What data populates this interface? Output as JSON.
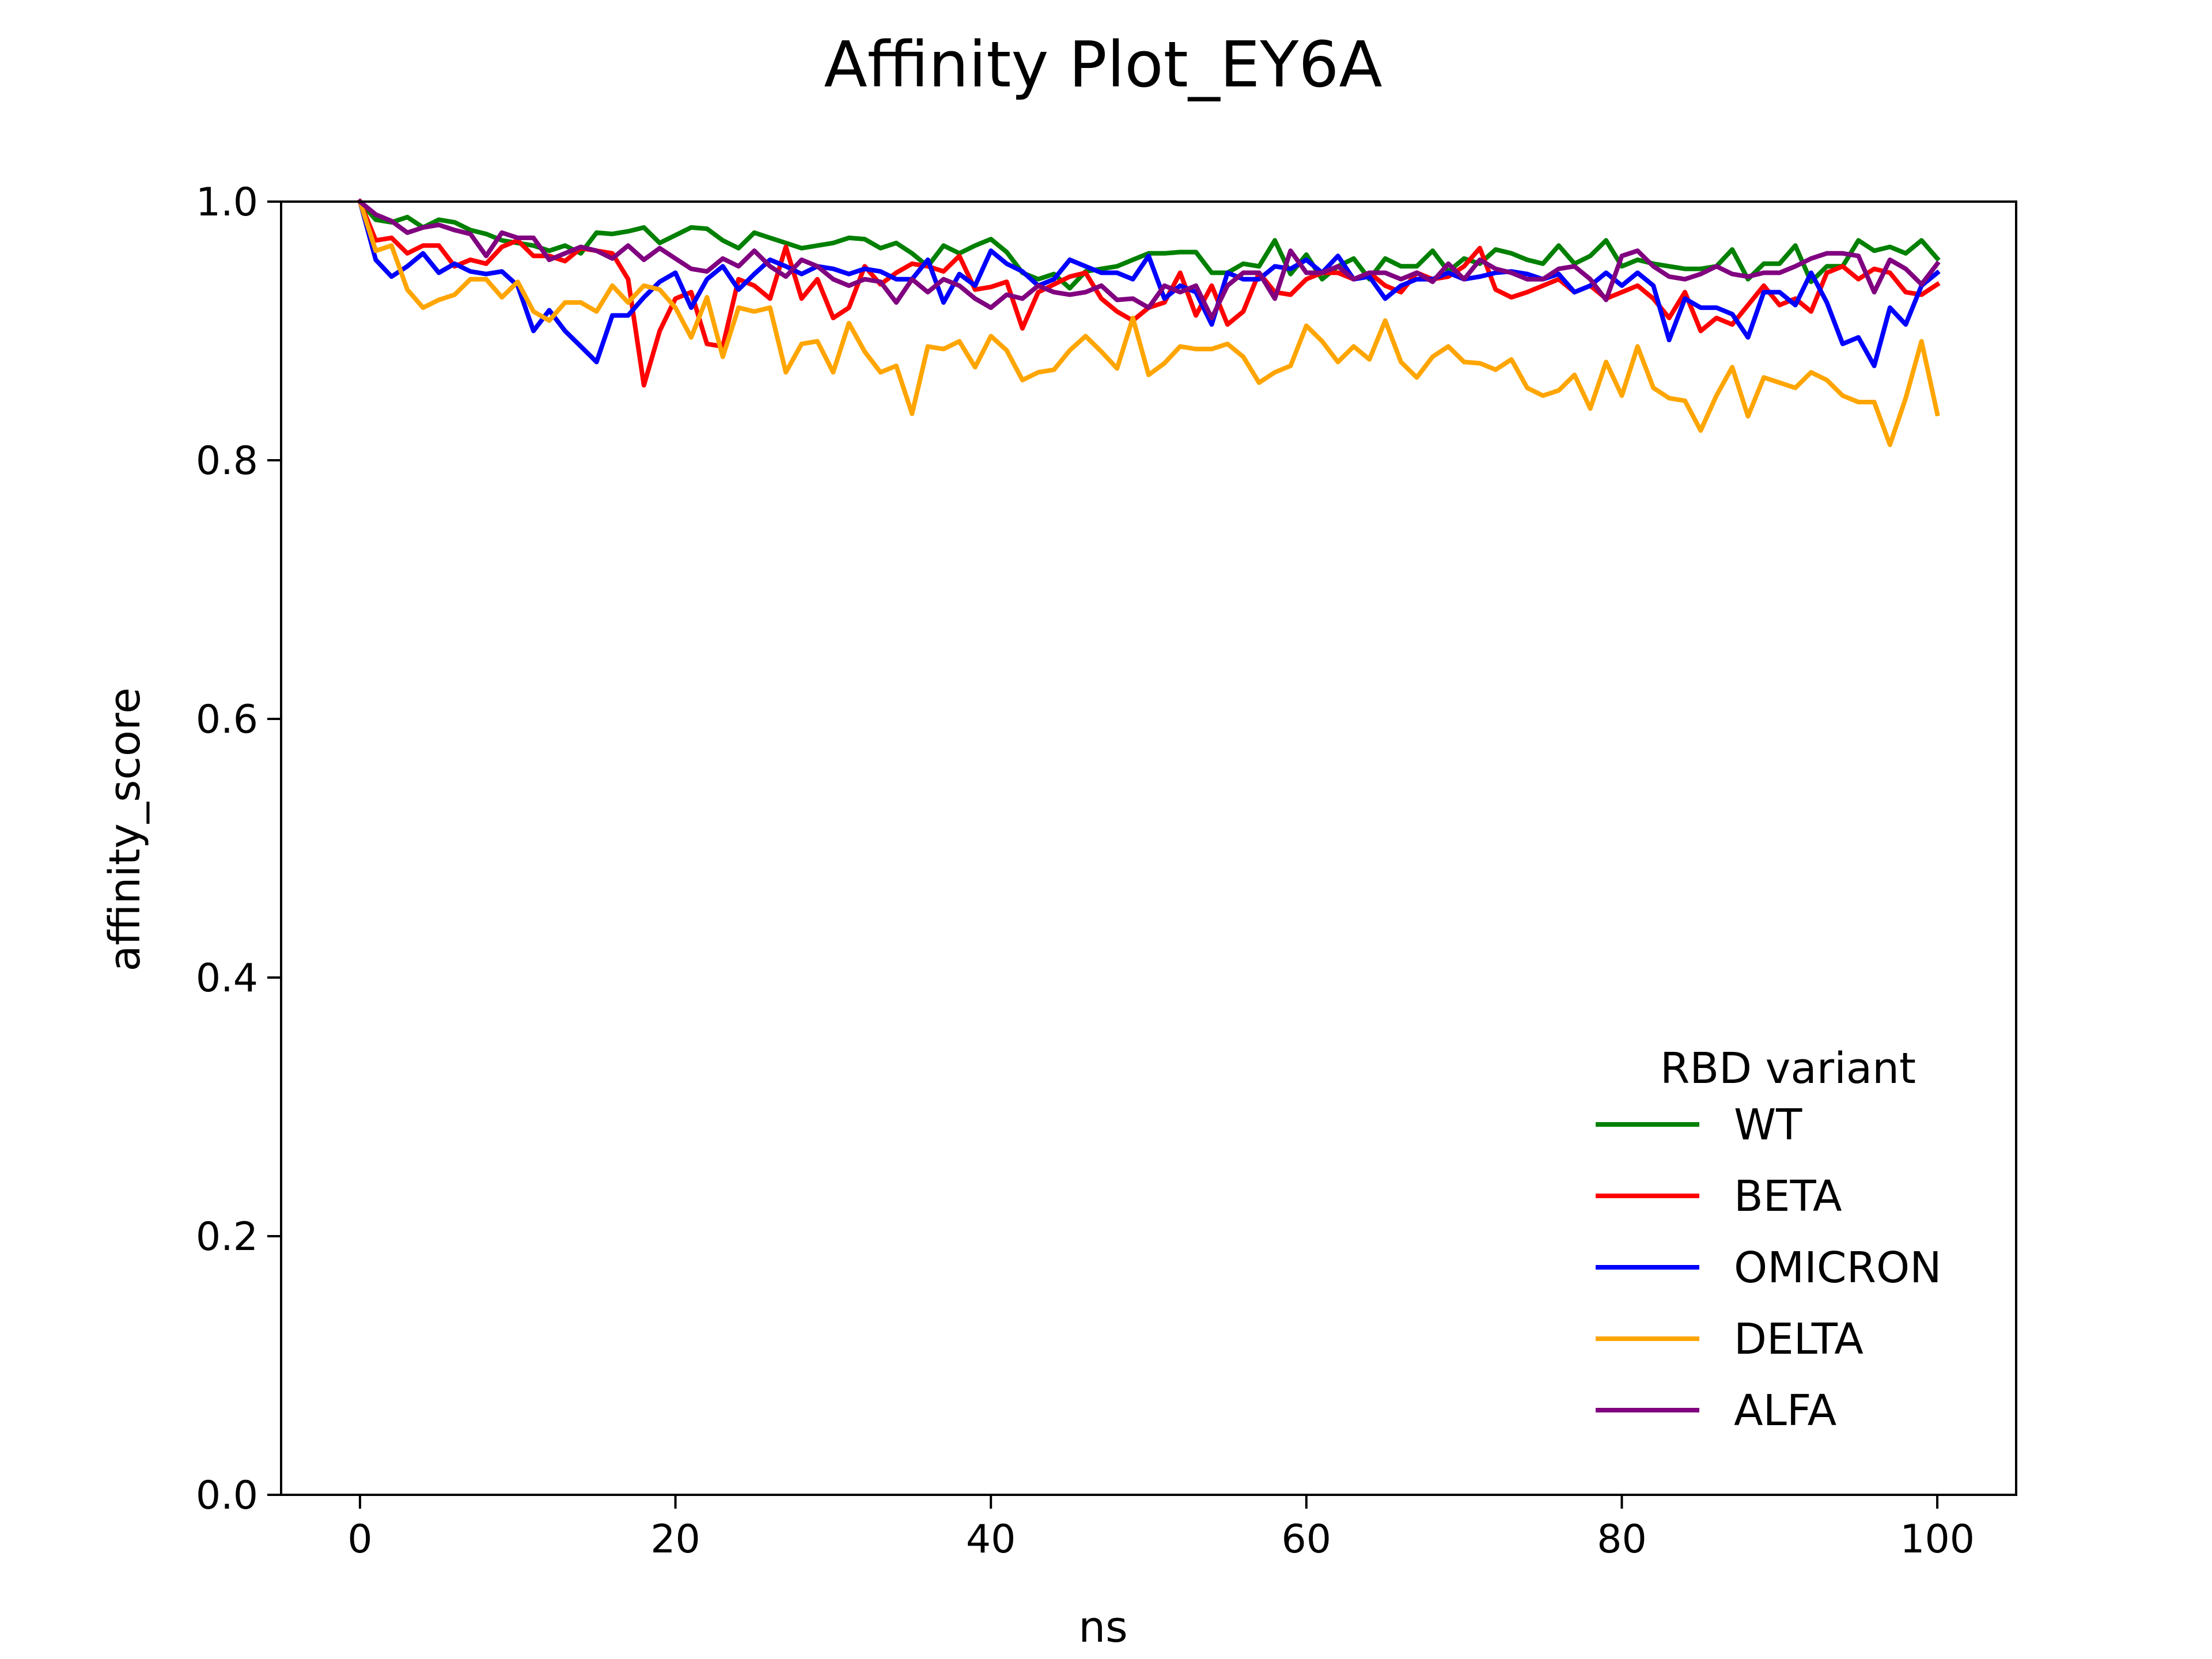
{
  "chart_data": {
    "type": "line",
    "title": "Affinity Plot_EY6A",
    "xlabel": "ns",
    "ylabel": "affinity_score",
    "xlim": [
      -5,
      105
    ],
    "ylim": [
      0.0,
      1.0
    ],
    "xticks": [
      0,
      20,
      40,
      60,
      80,
      100
    ],
    "xtick_labels": [
      "0",
      "20",
      "40",
      "60",
      "80",
      "100"
    ],
    "yticks": [
      0.0,
      0.2,
      0.4,
      0.6,
      0.8,
      1.0
    ],
    "ytick_labels": [
      "0.0",
      "0.2",
      "0.4",
      "0.6",
      "0.8",
      "1.0"
    ],
    "grid": false,
    "legend": {
      "title": "RBD variant",
      "placement": "lower-right"
    },
    "x": [
      0,
      1,
      2,
      3,
      4,
      5,
      6,
      7,
      8,
      9,
      10,
      11,
      12,
      13,
      14,
      15,
      16,
      17,
      18,
      19,
      20,
      21,
      22,
      23,
      24,
      25,
      26,
      27,
      28,
      29,
      30,
      31,
      32,
      33,
      34,
      35,
      36,
      37,
      38,
      39,
      40,
      41,
      42,
      43,
      44,
      45,
      46,
      47,
      48,
      49,
      50,
      51,
      52,
      53,
      54,
      55,
      56,
      57,
      58,
      59,
      60,
      61,
      62,
      63,
      64,
      65,
      66,
      67,
      68,
      69,
      70,
      71,
      72,
      73,
      74,
      75,
      76,
      77,
      78,
      79,
      80,
      81,
      82,
      83,
      84,
      85,
      86,
      87,
      88,
      89,
      90,
      91,
      92,
      93,
      94,
      95,
      96,
      97,
      98,
      99,
      100
    ],
    "series": [
      {
        "name": "WT",
        "color": "#008000",
        "values": [
          1.0,
          0.986,
          0.984,
          0.988,
          0.98,
          0.986,
          0.984,
          0.978,
          0.975,
          0.97,
          0.968,
          0.966,
          0.962,
          0.966,
          0.96,
          0.976,
          0.975,
          0.977,
          0.98,
          0.968,
          0.974,
          0.98,
          0.979,
          0.97,
          0.964,
          0.976,
          0.972,
          0.968,
          0.964,
          0.966,
          0.968,
          0.972,
          0.971,
          0.964,
          0.968,
          0.96,
          0.95,
          0.966,
          0.96,
          0.966,
          0.971,
          0.961,
          0.945,
          0.94,
          0.944,
          0.933,
          0.946,
          0.948,
          0.95,
          0.955,
          0.96,
          0.96,
          0.961,
          0.961,
          0.945,
          0.945,
          0.952,
          0.95,
          0.97,
          0.944,
          0.959,
          0.94,
          0.95,
          0.956,
          0.94,
          0.956,
          0.95,
          0.95,
          0.962,
          0.946,
          0.956,
          0.952,
          0.963,
          0.96,
          0.955,
          0.952,
          0.966,
          0.952,
          0.958,
          0.97,
          0.95,
          0.955,
          0.952,
          0.95,
          0.948,
          0.948,
          0.95,
          0.963,
          0.94,
          0.952,
          0.952,
          0.966,
          0.938,
          0.95,
          0.95,
          0.97,
          0.962,
          0.965,
          0.96,
          0.97,
          0.956
        ]
      },
      {
        "name": "BETA",
        "color": "#ff0000",
        "values": [
          1.0,
          0.97,
          0.972,
          0.96,
          0.966,
          0.966,
          0.95,
          0.955,
          0.952,
          0.965,
          0.97,
          0.958,
          0.958,
          0.954,
          0.964,
          0.962,
          0.96,
          0.94,
          0.858,
          0.9,
          0.925,
          0.93,
          0.89,
          0.888,
          0.94,
          0.935,
          0.925,
          0.965,
          0.925,
          0.94,
          0.91,
          0.918,
          0.95,
          0.936,
          0.945,
          0.952,
          0.95,
          0.946,
          0.958,
          0.932,
          0.934,
          0.938,
          0.902,
          0.93,
          0.936,
          0.942,
          0.945,
          0.925,
          0.915,
          0.908,
          0.918,
          0.922,
          0.945,
          0.912,
          0.935,
          0.905,
          0.915,
          0.945,
          0.93,
          0.928,
          0.94,
          0.945,
          0.945,
          0.94,
          0.945,
          0.935,
          0.93,
          0.945,
          0.94,
          0.942,
          0.95,
          0.964,
          0.932,
          0.926,
          0.93,
          0.935,
          0.94,
          0.93,
          0.935,
          0.925,
          0.93,
          0.935,
          0.925,
          0.91,
          0.93,
          0.9,
          0.91,
          0.905,
          0.92,
          0.935,
          0.92,
          0.925,
          0.915,
          0.945,
          0.95,
          0.94,
          0.948,
          0.945,
          0.93,
          0.928,
          0.936
        ]
      },
      {
        "name": "OMICRON",
        "color": "#0000ff",
        "values": [
          1.0,
          0.955,
          0.942,
          0.95,
          0.96,
          0.945,
          0.952,
          0.946,
          0.944,
          0.946,
          0.935,
          0.9,
          0.916,
          0.9,
          0.888,
          0.876,
          0.912,
          0.912,
          0.926,
          0.938,
          0.945,
          0.918,
          0.94,
          0.95,
          0.932,
          0.944,
          0.955,
          0.95,
          0.944,
          0.95,
          0.948,
          0.944,
          0.948,
          0.946,
          0.94,
          0.94,
          0.955,
          0.922,
          0.944,
          0.935,
          0.962,
          0.952,
          0.946,
          0.935,
          0.94,
          0.955,
          0.95,
          0.945,
          0.945,
          0.94,
          0.958,
          0.925,
          0.935,
          0.93,
          0.905,
          0.945,
          0.94,
          0.94,
          0.95,
          0.948,
          0.955,
          0.945,
          0.958,
          0.94,
          0.942,
          0.925,
          0.935,
          0.94,
          0.94,
          0.945,
          0.94,
          0.942,
          0.945,
          0.946,
          0.944,
          0.94,
          0.944,
          0.93,
          0.935,
          0.945,
          0.935,
          0.945,
          0.935,
          0.893,
          0.925,
          0.918,
          0.918,
          0.913,
          0.895,
          0.93,
          0.93,
          0.92,
          0.945,
          0.922,
          0.89,
          0.895,
          0.873,
          0.918,
          0.905,
          0.935,
          0.945
        ]
      },
      {
        "name": "DELTA",
        "color": "#ffa500",
        "values": [
          1.0,
          0.962,
          0.966,
          0.932,
          0.918,
          0.924,
          0.928,
          0.94,
          0.94,
          0.926,
          0.938,
          0.915,
          0.908,
          0.922,
          0.922,
          0.915,
          0.935,
          0.922,
          0.935,
          0.932,
          0.918,
          0.895,
          0.926,
          0.88,
          0.918,
          0.915,
          0.918,
          0.868,
          0.89,
          0.892,
          0.868,
          0.906,
          0.884,
          0.868,
          0.873,
          0.836,
          0.888,
          0.886,
          0.892,
          0.872,
          0.896,
          0.885,
          0.862,
          0.868,
          0.87,
          0.885,
          0.896,
          0.884,
          0.871,
          0.91,
          0.866,
          0.875,
          0.888,
          0.886,
          0.886,
          0.89,
          0.88,
          0.86,
          0.868,
          0.873,
          0.904,
          0.892,
          0.876,
          0.888,
          0.878,
          0.908,
          0.876,
          0.864,
          0.88,
          0.888,
          0.876,
          0.875,
          0.87,
          0.878,
          0.856,
          0.85,
          0.854,
          0.866,
          0.84,
          0.876,
          0.85,
          0.888,
          0.856,
          0.848,
          0.846,
          0.823,
          0.85,
          0.872,
          0.834,
          0.864,
          0.86,
          0.856,
          0.868,
          0.862,
          0.85,
          0.845,
          0.845,
          0.812,
          0.848,
          0.892,
          0.836
        ]
      },
      {
        "name": "ALFA",
        "color": "#800080",
        "values": [
          1.0,
          0.99,
          0.985,
          0.976,
          0.98,
          0.982,
          0.978,
          0.975,
          0.958,
          0.976,
          0.972,
          0.972,
          0.955,
          0.96,
          0.965,
          0.962,
          0.956,
          0.966,
          0.955,
          0.964,
          0.956,
          0.948,
          0.946,
          0.956,
          0.95,
          0.962,
          0.95,
          0.942,
          0.955,
          0.95,
          0.94,
          0.935,
          0.94,
          0.938,
          0.922,
          0.94,
          0.93,
          0.94,
          0.935,
          0.925,
          0.918,
          0.928,
          0.925,
          0.935,
          0.93,
          0.928,
          0.93,
          0.935,
          0.924,
          0.925,
          0.918,
          0.935,
          0.93,
          0.935,
          0.91,
          0.935,
          0.945,
          0.945,
          0.925,
          0.962,
          0.945,
          0.945,
          0.95,
          0.94,
          0.945,
          0.945,
          0.94,
          0.945,
          0.938,
          0.952,
          0.94,
          0.955,
          0.948,
          0.945,
          0.94,
          0.94,
          0.948,
          0.95,
          0.94,
          0.924,
          0.958,
          0.962,
          0.95,
          0.942,
          0.94,
          0.944,
          0.95,
          0.944,
          0.942,
          0.945,
          0.945,
          0.95,
          0.956,
          0.96,
          0.96,
          0.958,
          0.93,
          0.955,
          0.948,
          0.936,
          0.952
        ]
      }
    ]
  }
}
